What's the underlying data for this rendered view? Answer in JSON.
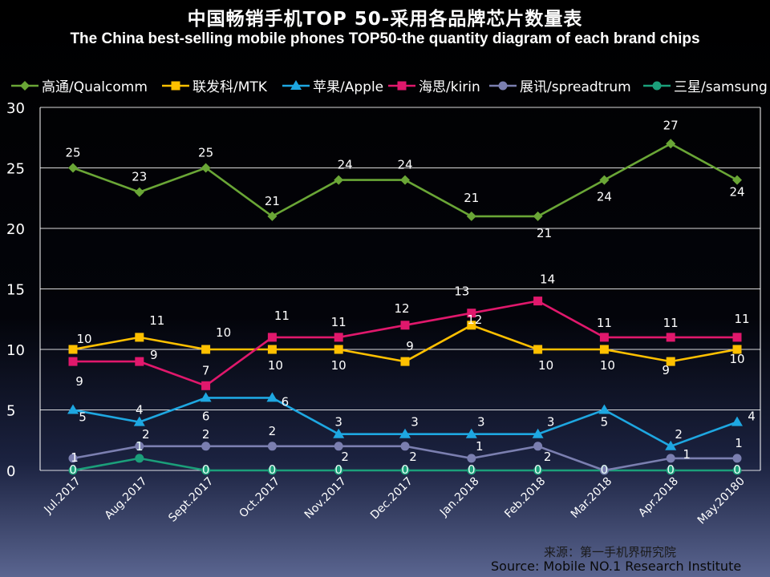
{
  "chart_data": {
    "type": "line",
    "title": "中国畅销手机TOP 50-采用各品牌芯片数量表",
    "subtitle": "The China best-selling mobile phones TOP50-the quantity diagram of each brand chips",
    "categories": [
      "Jul.2017",
      "Aug.2017",
      "Sept.2017",
      "Oct.2017",
      "Nov.2017",
      "Dec.2017",
      "Jan.2018",
      "Feb.2018",
      "Mar.2018",
      "Apr.2018",
      "May.20180"
    ],
    "ylim": [
      0,
      30
    ],
    "yticks": [
      0,
      5,
      10,
      15,
      20,
      25,
      30
    ],
    "grid": true,
    "legend_position": "top",
    "series": [
      {
        "name": "高通/Qualcomm",
        "color": "#6aa636",
        "marker": "diamond",
        "values": [
          25,
          23,
          25,
          21,
          24,
          24,
          21,
          21,
          24,
          27,
          24
        ]
      },
      {
        "name": "联发科/MTK",
        "color": "#ffc000",
        "marker": "square",
        "values": [
          10,
          11,
          10,
          10,
          10,
          9,
          12,
          10,
          10,
          9,
          10
        ]
      },
      {
        "name": "苹果/Apple",
        "color": "#1ea7e1",
        "marker": "triangle",
        "values": [
          5,
          4,
          6,
          6,
          3,
          3,
          3,
          3,
          5,
          2,
          4
        ]
      },
      {
        "name": "海思/kirin",
        "color": "#e0186c",
        "marker": "square",
        "values": [
          9,
          9,
          7,
          11,
          11,
          12,
          13,
          14,
          11,
          11,
          11
        ]
      },
      {
        "name": "展讯/spreadtrum",
        "color": "#7b7fb0",
        "marker": "circle",
        "values": [
          1,
          2,
          2,
          2,
          2,
          2,
          1,
          2,
          0,
          1,
          1
        ]
      },
      {
        "name": "三星/samsung",
        "color": "#1b9f7a",
        "marker": "circle",
        "values": [
          0,
          1,
          0,
          0,
          0,
          0,
          0,
          0,
          0,
          0,
          0
        ]
      }
    ]
  },
  "source": {
    "cn": "来源：第一手机界研究院",
    "en": "Source: Mobile NO.1 Research Institute"
  }
}
